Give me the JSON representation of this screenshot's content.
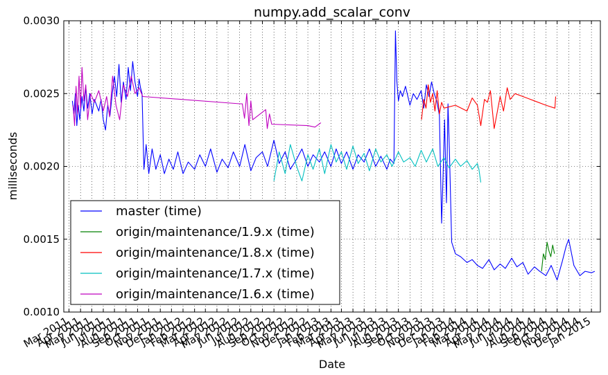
{
  "chart_data": {
    "type": "line",
    "title": "numpy.add_scalar_conv",
    "xlabel": "Date",
    "ylabel": "milliseconds",
    "ylim": [
      0.001,
      0.003
    ],
    "xlim": [
      "2011-02-15",
      "2015-01-25"
    ],
    "grid": true,
    "legend_position": "lower-left",
    "y_ticks": [
      "0.0010",
      "0.0015",
      "0.0020",
      "0.0025",
      "0.0030"
    ],
    "x_ticks": [
      {
        "label": "Mar 2011",
        "date": "2011-03-01"
      },
      {
        "label": "Apr 2011",
        "date": "2011-04-01"
      },
      {
        "label": "May 2011",
        "date": "2011-05-01"
      },
      {
        "label": "Jun 2011",
        "date": "2011-06-01"
      },
      {
        "label": "Jul 2011",
        "date": "2011-07-01"
      },
      {
        "label": "Aug 2011",
        "date": "2011-08-01"
      },
      {
        "label": "Sep 2011",
        "date": "2011-09-01"
      },
      {
        "label": "Oct 2011",
        "date": "2011-10-01"
      },
      {
        "label": "Nov 2011",
        "date": "2011-11-01"
      },
      {
        "label": "Dec 2011",
        "date": "2011-12-01"
      },
      {
        "label": "Jan 2012",
        "date": "2012-01-01"
      },
      {
        "label": "Feb 2012",
        "date": "2012-02-01"
      },
      {
        "label": "Mar 2012",
        "date": "2012-03-01"
      },
      {
        "label": "Apr 2012",
        "date": "2012-04-01"
      },
      {
        "label": "May 2012",
        "date": "2012-05-01"
      },
      {
        "label": "Jun 2012",
        "date": "2012-06-01"
      },
      {
        "label": "Jul 2012",
        "date": "2012-07-01"
      },
      {
        "label": "Aug 2012",
        "date": "2012-08-01"
      },
      {
        "label": "Sep 2012",
        "date": "2012-09-01"
      },
      {
        "label": "Oct 2012",
        "date": "2012-10-01"
      },
      {
        "label": "Nov 2012",
        "date": "2012-11-01"
      },
      {
        "label": "Dec 2012",
        "date": "2012-12-01"
      },
      {
        "label": "Jan 2013",
        "date": "2013-01-01"
      },
      {
        "label": "Feb 2013",
        "date": "2013-02-01"
      },
      {
        "label": "Mar 2013",
        "date": "2013-03-01"
      },
      {
        "label": "Apr 2013",
        "date": "2013-04-01"
      },
      {
        "label": "May 2013",
        "date": "2013-05-01"
      },
      {
        "label": "Jun 2013",
        "date": "2013-06-01"
      },
      {
        "label": "Jul 2013",
        "date": "2013-07-01"
      },
      {
        "label": "Aug 2013",
        "date": "2013-08-01"
      },
      {
        "label": "Sep 2013",
        "date": "2013-09-01"
      },
      {
        "label": "Oct 2013",
        "date": "2013-10-01"
      },
      {
        "label": "Nov 2013",
        "date": "2013-11-01"
      },
      {
        "label": "Dec 2013",
        "date": "2013-12-01"
      },
      {
        "label": "Jan 2014",
        "date": "2014-01-01"
      },
      {
        "label": "Feb 2014",
        "date": "2014-02-01"
      },
      {
        "label": "Mar 2014",
        "date": "2014-03-01"
      },
      {
        "label": "Apr 2014",
        "date": "2014-04-01"
      },
      {
        "label": "May 2014",
        "date": "2014-05-01"
      },
      {
        "label": "Jun 2014",
        "date": "2014-06-01"
      },
      {
        "label": "Jul 2014",
        "date": "2014-07-01"
      },
      {
        "label": "Aug 2014",
        "date": "2014-08-01"
      },
      {
        "label": "Sep 2014",
        "date": "2014-09-01"
      },
      {
        "label": "Oct 2014",
        "date": "2014-10-01"
      },
      {
        "label": "Nov 2014",
        "date": "2014-11-01"
      },
      {
        "label": "Dec 2014",
        "date": "2014-12-01"
      },
      {
        "label": "Jan 2015",
        "date": "2015-01-01"
      }
    ],
    "series": [
      {
        "name": "master (time)",
        "color": "#0000ff",
        "x": [
          "2011-03-10",
          "2011-03-14",
          "2011-03-18",
          "2011-03-22",
          "2011-03-26",
          "2011-03-30",
          "2011-04-05",
          "2011-04-10",
          "2011-04-15",
          "2011-04-20",
          "2011-04-26",
          "2011-05-02",
          "2011-05-08",
          "2011-05-14",
          "2011-05-20",
          "2011-05-26",
          "2011-06-01",
          "2011-06-07",
          "2011-06-13",
          "2011-06-19",
          "2011-06-25",
          "2011-07-01",
          "2011-07-07",
          "2011-07-13",
          "2011-07-19",
          "2011-07-25",
          "2011-08-01",
          "2011-08-07",
          "2011-08-13",
          "2011-08-19",
          "2011-08-25",
          "2011-09-01",
          "2011-09-05",
          "2011-09-09",
          "2011-09-13",
          "2011-09-18",
          "2011-09-24",
          "2011-10-01",
          "2011-10-10",
          "2011-10-20",
          "2011-11-01",
          "2011-11-12",
          "2011-11-24",
          "2011-12-06",
          "2011-12-18",
          "2012-01-01",
          "2012-01-15",
          "2012-02-01",
          "2012-02-15",
          "2012-03-01",
          "2012-03-15",
          "2012-04-01",
          "2012-04-15",
          "2012-05-01",
          "2012-05-15",
          "2012-06-01",
          "2012-06-15",
          "2012-07-01",
          "2012-07-15",
          "2012-08-01",
          "2012-08-15",
          "2012-09-01",
          "2012-09-15",
          "2012-10-01",
          "2012-10-15",
          "2012-11-01",
          "2012-11-15",
          "2012-12-01",
          "2012-12-15",
          "2013-01-01",
          "2013-01-15",
          "2013-02-01",
          "2013-02-15",
          "2013-03-01",
          "2013-03-15",
          "2013-04-01",
          "2013-04-15",
          "2013-05-01",
          "2013-05-15",
          "2013-06-01",
          "2013-06-15",
          "2013-07-01",
          "2013-07-10",
          "2013-07-20",
          "2013-07-24",
          "2013-07-28",
          "2013-08-01",
          "2013-08-06",
          "2013-08-12",
          "2013-08-20",
          "2013-09-01",
          "2013-09-10",
          "2013-09-20",
          "2013-10-01",
          "2013-10-08",
          "2013-10-15",
          "2013-10-22",
          "2013-10-29",
          "2013-11-05",
          "2013-11-12",
          "2013-11-19",
          "2013-11-25",
          "2013-11-29",
          "2013-12-03",
          "2013-12-08",
          "2013-12-12",
          "2013-12-16",
          "2013-12-22",
          "2014-01-01",
          "2014-01-15",
          "2014-02-01",
          "2014-02-15",
          "2014-03-01",
          "2014-03-15",
          "2014-04-01",
          "2014-04-15",
          "2014-05-01",
          "2014-05-15",
          "2014-06-01",
          "2014-06-15",
          "2014-07-01",
          "2014-07-15",
          "2014-08-01",
          "2014-08-15",
          "2014-09-01",
          "2014-09-15",
          "2014-10-01",
          "2014-10-15",
          "2014-10-25",
          "2014-11-01",
          "2014-11-15",
          "2014-12-01",
          "2014-12-15",
          "2015-01-01",
          "2015-01-10"
        ],
        "y": [
          0.00245,
          0.00236,
          0.0025,
          0.00228,
          0.00242,
          0.00232,
          0.00248,
          0.00238,
          0.00255,
          0.0024,
          0.0025,
          0.00236,
          0.00246,
          0.00242,
          0.00238,
          0.00246,
          0.00232,
          0.00225,
          0.00242,
          0.00235,
          0.0025,
          0.00262,
          0.00248,
          0.0027,
          0.00244,
          0.00258,
          0.00246,
          0.00268,
          0.00252,
          0.00272,
          0.00258,
          0.00248,
          0.0026,
          0.00254,
          0.0025,
          0.00198,
          0.00215,
          0.00195,
          0.00212,
          0.00198,
          0.00208,
          0.00195,
          0.00205,
          0.00198,
          0.0021,
          0.00195,
          0.00203,
          0.00198,
          0.00208,
          0.002,
          0.00212,
          0.00196,
          0.00205,
          0.00199,
          0.0021,
          0.002,
          0.00215,
          0.00197,
          0.00206,
          0.0021,
          0.002,
          0.00218,
          0.00202,
          0.0021,
          0.00198,
          0.00205,
          0.00212,
          0.002,
          0.00208,
          0.00203,
          0.0021,
          0.002,
          0.00212,
          0.00202,
          0.0021,
          0.00198,
          0.00208,
          0.00203,
          0.00212,
          0.002,
          0.00207,
          0.00198,
          0.00205,
          0.00202,
          0.00293,
          0.00258,
          0.00245,
          0.00252,
          0.00248,
          0.00255,
          0.00242,
          0.0025,
          0.00246,
          0.00252,
          0.0024,
          0.00256,
          0.00248,
          0.00258,
          0.0025,
          0.00245,
          0.00235,
          0.00161,
          0.00195,
          0.00232,
          0.00175,
          0.00243,
          0.0021,
          0.00148,
          0.0014,
          0.00138,
          0.00134,
          0.00136,
          0.00132,
          0.0013,
          0.00136,
          0.00129,
          0.00133,
          0.0013,
          0.00137,
          0.00131,
          0.00134,
          0.00126,
          0.00131,
          0.00128,
          0.00125,
          0.00132,
          0.00122,
          0.00135,
          0.00145,
          0.0015,
          0.00132,
          0.00125,
          0.00128,
          0.00127,
          0.00128
        ]
      },
      {
        "name": "origin/maintenance/1.9.x (time)",
        "color": "#008000",
        "x": [
          "2014-08-20",
          "2014-08-25",
          "2014-08-30",
          "2014-09-04",
          "2014-09-09",
          "2014-09-14",
          "2014-09-19",
          "2014-09-24"
        ],
        "y": [
          0.00128,
          0.0014,
          0.00136,
          0.00148,
          0.00142,
          0.00138,
          0.00146,
          0.0014
        ]
      },
      {
        "name": "origin/maintenance/1.8.x (time)",
        "color": "#ff0000",
        "x": [
          "2013-10-02",
          "2013-10-08",
          "2013-10-14",
          "2013-10-20",
          "2013-10-26",
          "2013-11-01",
          "2013-11-07",
          "2013-11-13",
          "2013-11-19",
          "2013-11-25",
          "2013-12-01",
          "2014-01-01",
          "2014-02-01",
          "2014-02-15",
          "2014-03-01",
          "2014-03-10",
          "2014-03-20",
          "2014-03-28",
          "2014-04-05",
          "2014-04-15",
          "2014-05-01",
          "2014-05-10",
          "2014-05-20",
          "2014-05-28",
          "2014-06-10",
          "2014-07-01",
          "2014-08-01",
          "2014-09-01",
          "2014-09-25",
          "2014-09-27"
        ],
        "y": [
          0.00232,
          0.00246,
          0.0024,
          0.00256,
          0.00244,
          0.0025,
          0.00238,
          0.00252,
          0.00236,
          0.00244,
          0.0024,
          0.00242,
          0.00238,
          0.00247,
          0.00242,
          0.00228,
          0.00246,
          0.00244,
          0.00252,
          0.00226,
          0.00248,
          0.00238,
          0.00254,
          0.00246,
          0.0025,
          0.00248,
          0.00245,
          0.00242,
          0.0024,
          0.00248
        ]
      },
      {
        "name": "origin/maintenance/1.7.x (time)",
        "color": "#00bfbf",
        "x": [
          "2012-09-01",
          "2012-09-15",
          "2012-10-01",
          "2012-10-15",
          "2012-11-01",
          "2012-11-15",
          "2012-12-01",
          "2012-12-15",
          "2013-01-01",
          "2013-01-15",
          "2013-02-01",
          "2013-02-15",
          "2013-03-01",
          "2013-03-15",
          "2013-04-01",
          "2013-04-15",
          "2013-05-01",
          "2013-05-15",
          "2013-06-01",
          "2013-06-15",
          "2013-07-01",
          "2013-07-15",
          "2013-08-01",
          "2013-08-15",
          "2013-09-01",
          "2013-09-15",
          "2013-10-01",
          "2013-10-15",
          "2013-11-01",
          "2013-11-15",
          "2013-12-01",
          "2013-12-15",
          "2014-01-01",
          "2014-01-15",
          "2014-02-01",
          "2014-02-15",
          "2014-03-01",
          "2014-03-05",
          "2014-03-10"
        ],
        "y": [
          0.0019,
          0.0021,
          0.00195,
          0.00215,
          0.002,
          0.0019,
          0.00208,
          0.00198,
          0.00212,
          0.00195,
          0.00215,
          0.00203,
          0.0021,
          0.00198,
          0.00214,
          0.00202,
          0.00209,
          0.00197,
          0.00212,
          0.00203,
          0.00208,
          0.002,
          0.0021,
          0.00203,
          0.00206,
          0.002,
          0.00211,
          0.00203,
          0.00212,
          0.002,
          0.00206,
          0.00199,
          0.00205,
          0.002,
          0.00204,
          0.00198,
          0.00202,
          0.00198,
          0.00189
        ]
      },
      {
        "name": "origin/maintenance/1.6.x (time)",
        "color": "#bf00bf",
        "x": [
          "2011-03-12",
          "2011-03-16",
          "2011-03-20",
          "2011-03-24",
          "2011-03-28",
          "2011-04-01",
          "2011-04-05",
          "2011-04-10",
          "2011-04-15",
          "2011-04-20",
          "2011-04-28",
          "2011-05-08",
          "2011-05-20",
          "2011-06-01",
          "2011-06-10",
          "2011-06-18",
          "2011-06-26",
          "2011-07-05",
          "2011-07-15",
          "2011-07-25",
          "2011-08-05",
          "2011-08-15",
          "2011-08-25",
          "2011-09-05",
          "2011-09-15",
          "2012-06-01",
          "2012-06-08",
          "2012-06-14",
          "2012-06-20",
          "2012-06-26",
          "2012-07-01",
          "2012-07-06",
          "2012-08-10",
          "2012-08-14",
          "2012-08-20",
          "2012-08-26",
          "2012-12-01",
          "2012-12-20",
          "2013-01-05"
        ],
        "y": [
          0.00242,
          0.00228,
          0.00255,
          0.00236,
          0.00262,
          0.0024,
          0.00268,
          0.00245,
          0.00256,
          0.00232,
          0.0025,
          0.00244,
          0.00252,
          0.00238,
          0.00248,
          0.00234,
          0.00262,
          0.00242,
          0.00232,
          0.00256,
          0.00248,
          0.00262,
          0.0025,
          0.00254,
          0.00248,
          0.00243,
          0.00243,
          0.00233,
          0.0025,
          0.00228,
          0.00245,
          0.00232,
          0.00239,
          0.00226,
          0.00236,
          0.00229,
          0.00228,
          0.00227,
          0.0023
        ]
      }
    ]
  }
}
